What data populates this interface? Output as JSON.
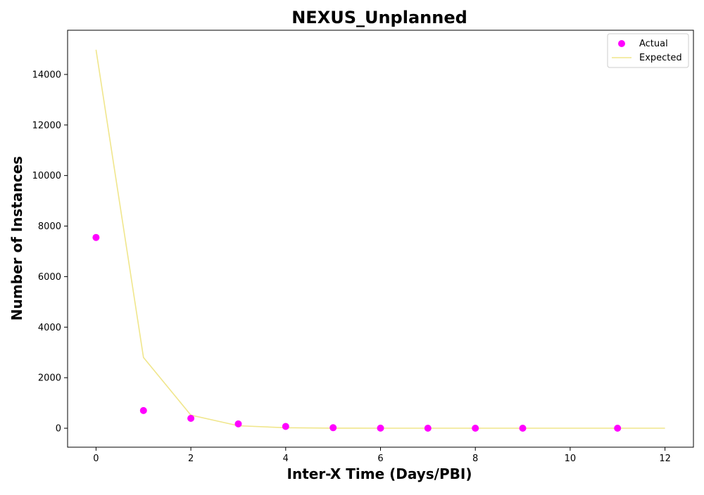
{
  "chart_data": {
    "type": "scatter",
    "title": "NEXUS_Unplanned",
    "xlabel": "Inter-X Time (Days/PBI)",
    "ylabel": "Number of Instances",
    "xlim": [
      -0.6,
      12.6
    ],
    "ylim": [
      -750,
      15750
    ],
    "xticks": [
      0,
      2,
      4,
      6,
      8,
      10,
      12
    ],
    "yticks": [
      0,
      2000,
      4000,
      6000,
      8000,
      10000,
      12000,
      14000
    ],
    "grid": false,
    "legend_position": "top-right",
    "series": [
      {
        "name": "Actual",
        "kind": "scatter",
        "color": "#ff00ff",
        "x": [
          0,
          1,
          2,
          3,
          4,
          5,
          6,
          7,
          8,
          9,
          11
        ],
        "y": [
          7550,
          700,
          390,
          170,
          70,
          20,
          5,
          2,
          1,
          1,
          0
        ]
      },
      {
        "name": "Expected",
        "kind": "line",
        "color": "#f0e68c",
        "x": [
          0,
          1,
          2,
          3,
          4,
          5,
          6,
          7,
          8,
          9,
          10,
          11,
          12
        ],
        "y": [
          14980,
          2800,
          520,
          100,
          20,
          4,
          1,
          0,
          0,
          0,
          0,
          0,
          0
        ]
      }
    ]
  }
}
